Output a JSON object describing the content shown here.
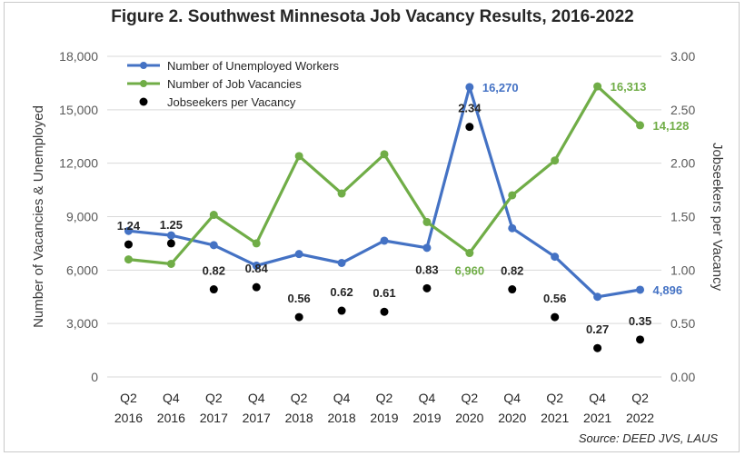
{
  "chart_data": {
    "type": "line",
    "title": "Figure 2. Southwest Minnesota Job Vacancy Results, 2016-2022",
    "source": "Source: DEED JVS, LAUS",
    "ylabel": "Number of Vacancies & Unemployed",
    "y2label": "Jobseekers per Vacancy",
    "ylim": [
      0,
      18000
    ],
    "yticks": [
      "0",
      "3,000",
      "6,000",
      "9,000",
      "12,000",
      "15,000",
      "18,000"
    ],
    "y2lim": [
      0,
      3.0
    ],
    "y2ticks": [
      "0.00",
      "0.50",
      "1.00",
      "1.50",
      "2.00",
      "2.50",
      "3.00"
    ],
    "categories": [
      {
        "q": "Q2",
        "y": "2016"
      },
      {
        "q": "Q4",
        "y": "2016"
      },
      {
        "q": "Q2",
        "y": "2017"
      },
      {
        "q": "Q4",
        "y": "2017"
      },
      {
        "q": "Q2",
        "y": "2018"
      },
      {
        "q": "Q4",
        "y": "2018"
      },
      {
        "q": "Q2",
        "y": "2019"
      },
      {
        "q": "Q4",
        "y": "2019"
      },
      {
        "q": "Q2",
        "y": "2020"
      },
      {
        "q": "Q4",
        "y": "2020"
      },
      {
        "q": "Q2",
        "y": "2021"
      },
      {
        "q": "Q4",
        "y": "2021"
      },
      {
        "q": "Q2",
        "y": "2022"
      }
    ],
    "series": [
      {
        "name": "Number of Unemployed Workers",
        "axis": "left",
        "kind": "line",
        "color": "#4472c4",
        "values": [
          8200,
          7950,
          7400,
          6250,
          6900,
          6400,
          7650,
          7250,
          16270,
          8350,
          6750,
          4500,
          4896
        ],
        "labels": [
          {
            "index": 8,
            "text": "16,270"
          },
          {
            "index": 12,
            "text": "4,896"
          }
        ]
      },
      {
        "name": "Number of Job Vacancies",
        "axis": "left",
        "kind": "line",
        "color": "#70ad47",
        "values": [
          6600,
          6350,
          9100,
          7500,
          12400,
          10300,
          12500,
          8700,
          6960,
          10200,
          12150,
          16313,
          14128
        ],
        "labels": [
          {
            "index": 8,
            "text": "6,960"
          },
          {
            "index": 11,
            "text": "16,313"
          },
          {
            "index": 12,
            "text": "14,128"
          }
        ]
      },
      {
        "name": "Jobseekers per Vacancy",
        "axis": "right",
        "kind": "scatter",
        "color": "#000000",
        "values": [
          1.24,
          1.25,
          0.82,
          0.84,
          0.56,
          0.62,
          0.61,
          0.83,
          2.34,
          0.82,
          0.56,
          0.27,
          0.35
        ],
        "labels": [
          "1.24",
          "1.25",
          "0.82",
          "0.84",
          "0.56",
          "0.62",
          "0.61",
          "0.83",
          "2.34",
          "0.82",
          "0.56",
          "0.27",
          "0.35"
        ]
      }
    ],
    "legend": {
      "position": "top-left",
      "entries": [
        "Number of Unemployed Workers",
        "Number of Job Vacancies",
        "Jobseekers per Vacancy"
      ]
    }
  }
}
